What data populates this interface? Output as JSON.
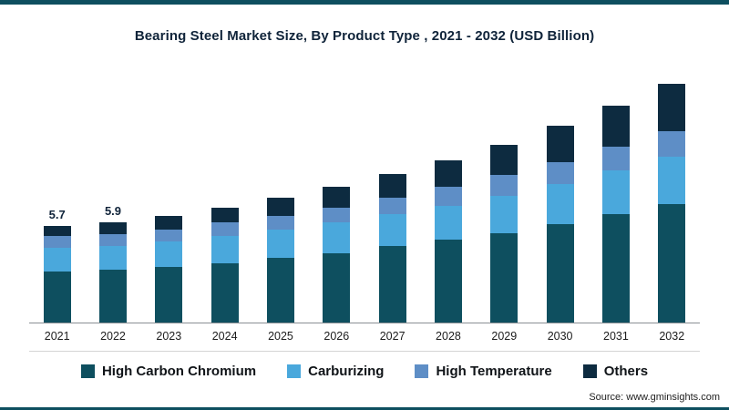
{
  "header": {
    "title": "Bearing Steel Market Size, By Product Type , 2021 - 2032 (USD Billion)"
  },
  "chart_data": {
    "type": "bar",
    "stacked": true,
    "title": "Bearing Steel Market Size, By Product Type , 2021 - 2032 (USD Billion)",
    "unit": "USD Billion",
    "categories": [
      "2021",
      "2022",
      "2023",
      "2024",
      "2025",
      "2026",
      "2027",
      "2028",
      "2029",
      "2030",
      "2031",
      "2032"
    ],
    "series": [
      {
        "name": "High Carbon Chromium",
        "color": "#0e4f5f",
        "values": [
          3.0,
          3.1,
          3.3,
          3.5,
          3.8,
          4.1,
          4.5,
          4.9,
          5.3,
          5.8,
          6.4,
          7.0
        ]
      },
      {
        "name": "Carburizing",
        "color": "#4aa8dc",
        "values": [
          1.4,
          1.4,
          1.5,
          1.6,
          1.7,
          1.8,
          1.9,
          2.0,
          2.2,
          2.4,
          2.6,
          2.8
        ]
      },
      {
        "name": "High Temperature",
        "color": "#5e8ec6",
        "values": [
          0.7,
          0.7,
          0.7,
          0.8,
          0.8,
          0.9,
          1.0,
          1.1,
          1.2,
          1.3,
          1.4,
          1.5
        ]
      },
      {
        "name": "Others",
        "color": "#0d2b40",
        "values": [
          0.6,
          0.7,
          0.8,
          0.9,
          1.1,
          1.2,
          1.4,
          1.6,
          1.8,
          2.1,
          2.4,
          2.8
        ]
      }
    ],
    "totals": [
      5.7,
      5.9,
      6.3,
      6.8,
      7.4,
      8.0,
      8.8,
      9.6,
      10.5,
      11.6,
      12.8,
      14.1
    ],
    "value_labels": [
      "5.7",
      "5.9",
      "",
      "",
      "",
      "",
      "",
      "",
      "",
      "",
      "",
      ""
    ],
    "legend_position": "bottom",
    "grid": false,
    "ylim": [
      0,
      15
    ]
  },
  "source": {
    "prefix": "Source:",
    "url": "www.gminsights.com"
  },
  "colors": {
    "accent": "#0e4f5f",
    "dark_navy": "#0d2b40"
  }
}
